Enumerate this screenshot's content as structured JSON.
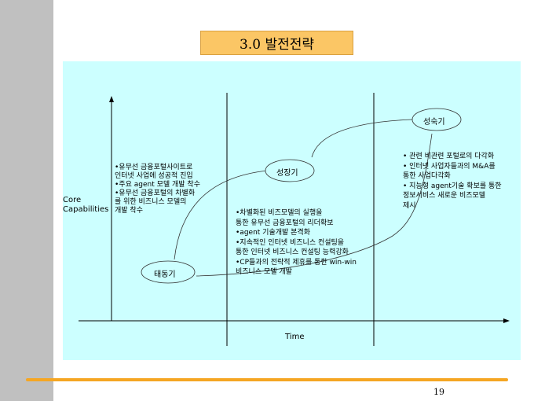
{
  "title": "3.0 발전전략",
  "y_axis_label": [
    "Core",
    "Capabilities"
  ],
  "x_axis_label": "Time",
  "stages": [
    {
      "label": "태동기",
      "bullets": [
        "•유무선 금융포털사이트로",
        " 인터넷 사업에 성공적 진입",
        "•주요  agent 모델 개발 착수",
        "•유무선 금융포털의 차별화",
        " 를 위한 비즈니스 모델의",
        " 개발 착수"
      ]
    },
    {
      "label": "성장기",
      "bullets": [
        "•차별화된 비즈모델의 실행을",
        " 통한 유무선 금융포털의 리더확보",
        "•agent 기술개발 본격화",
        "•지속적인 인터넷 비즈니스 컨설팅을",
        " 통한  인터넷 비즈니스 컨설팅 능력강화",
        "•CP들과의 전략적 제휴를 통한 win-win",
        " 비즈니스 모델 개발"
      ]
    },
    {
      "label": "성숙기",
      "bullets": [
        "• 관련 비관련 포털로의 다각화",
        "• 인터넷 사업자들과의 M&A를",
        "  통한  사업다각화",
        "• 지능형 agent기술 확보를 통한",
        "  정보서비스 새로운 비즈모델",
        "  제시"
      ]
    }
  ],
  "page_number": "19",
  "colors": {
    "panel": "#ccffff",
    "title_box": "#fbc665",
    "sidebar": "#c0c0c0",
    "footer_line": "#f5a623"
  }
}
